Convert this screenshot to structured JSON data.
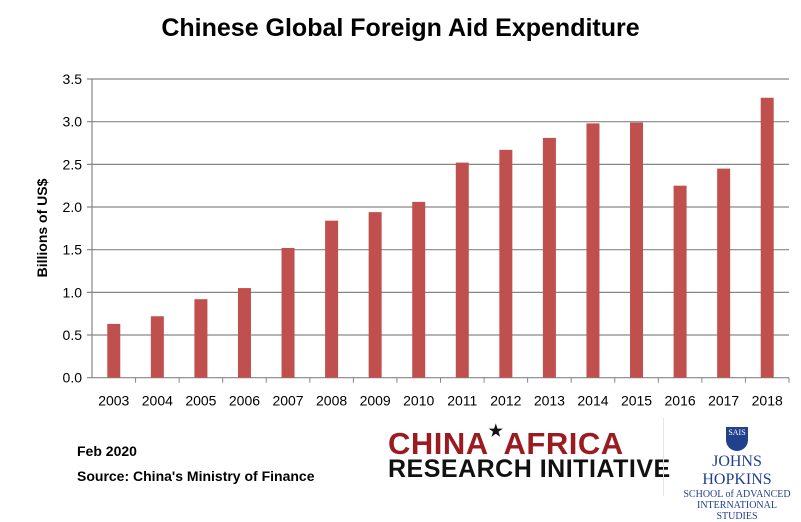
{
  "chart_data": {
    "type": "bar",
    "title": "Chinese Global Foreign Aid Expenditure",
    "xlabel": "",
    "ylabel": "Billions of US$",
    "categories": [
      "2003",
      "2004",
      "2005",
      "2006",
      "2007",
      "2008",
      "2009",
      "2010",
      "2011",
      "2012",
      "2013",
      "2014",
      "2015",
      "2016",
      "2017",
      "2018"
    ],
    "values": [
      0.63,
      0.72,
      0.92,
      1.05,
      1.52,
      1.84,
      1.94,
      2.06,
      2.52,
      2.67,
      2.81,
      2.98,
      2.99,
      2.25,
      2.45,
      3.28
    ],
    "ylim": [
      0,
      3.5
    ],
    "yticks": [
      "0.0",
      "0.5",
      "1.0",
      "1.5",
      "2.0",
      "2.5",
      "3.0",
      "3.5"
    ],
    "grid": true,
    "bar_color": "#c0504d"
  },
  "footer": {
    "date": "Feb 2020",
    "source": "Source: China's Ministry of Finance"
  },
  "logos": {
    "cari_line1a": "CHINA",
    "cari_line1b": "AFRICA",
    "cari_line2": "RESEARCH INITIATIVE",
    "jhu_shield": "SAIS",
    "jhu_name": "JOHNS HOPKINS",
    "jhu_line1": "SCHOOL of ADVANCED",
    "jhu_line2": "INTERNATIONAL STUDIES"
  }
}
